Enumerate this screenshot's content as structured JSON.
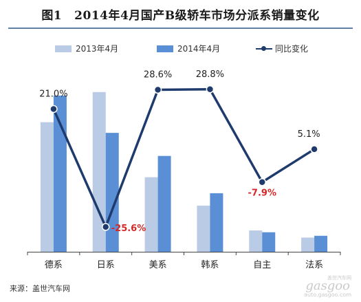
{
  "header": {
    "figure_label": "图1",
    "title": "2014年4月国产B级轿车市场分派系销量变化"
  },
  "chart_data": {
    "type": "bar",
    "categories": [
      "德系",
      "日系",
      "美系",
      "韩系",
      "自主",
      "法系"
    ],
    "series": [
      {
        "name": "2013年4月",
        "values": [
          73,
          90,
          42,
          26,
          12,
          8
        ],
        "color": "#b9cbe5"
      },
      {
        "name": "2014年4月",
        "values": [
          88,
          67,
          54,
          33,
          11,
          9
        ],
        "color": "#5b8fd5"
      }
    ],
    "line": {
      "name": "同比变化",
      "values": [
        21.0,
        -25.6,
        28.6,
        28.8,
        -7.9,
        5.1
      ],
      "labels": [
        "21.0%",
        "-25.6%",
        "28.6%",
        "28.8%",
        "-7.9%",
        "5.1%"
      ],
      "color": "#1f3b6e",
      "negative_label_color": "#d62728",
      "ylim": [
        -30,
        32
      ]
    },
    "ylim": [
      0,
      100
    ],
    "legend_position": "top",
    "grid": false
  },
  "source_text": "来源：盖世汽车网",
  "watermark": {
    "cn": "盖世汽车网",
    "logo": "gasgoo",
    "url": "auto.gasgoo.com"
  }
}
